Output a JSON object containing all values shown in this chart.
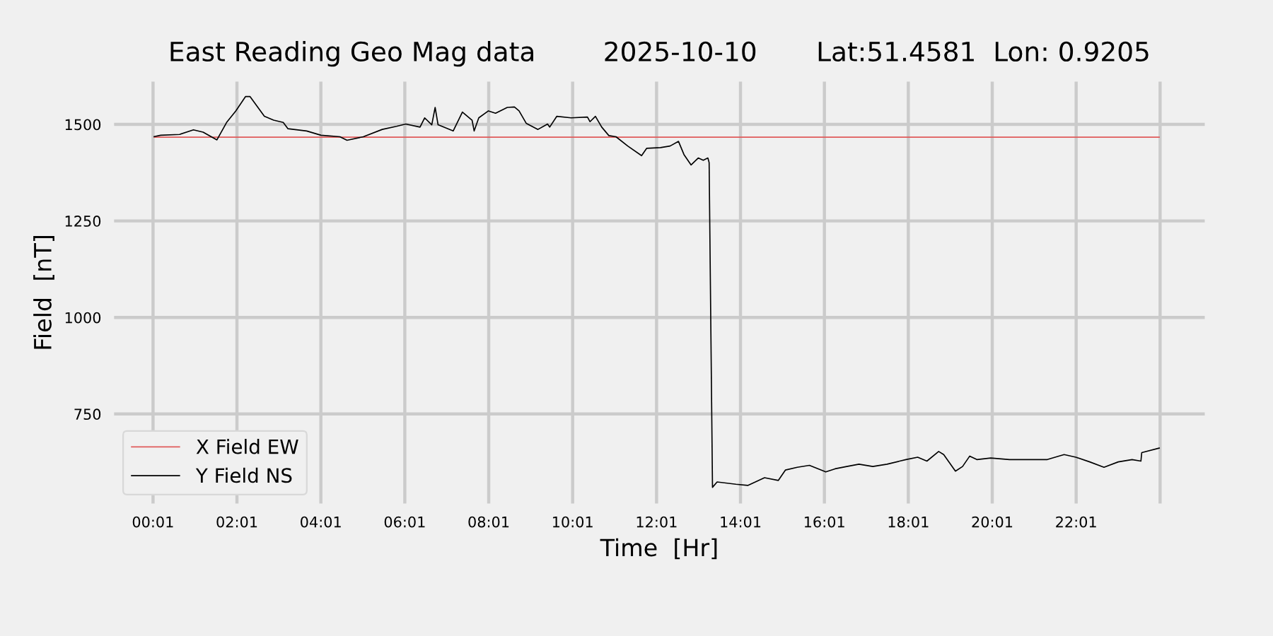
{
  "chart_data": {
    "type": "line",
    "title": "East Reading Geo Mag data        2025-10-10       Lat:51.4581  Lon: 0.9205",
    "xlabel": "Time  [Hr]",
    "ylabel": "Field  [nT]",
    "xlim": [
      -0.93,
      25.1
    ],
    "ylim": [
      516,
      1613
    ],
    "xticks": [
      {
        "value": 0.017,
        "label": "00:01"
      },
      {
        "value": 2.017,
        "label": "02:01"
      },
      {
        "value": 4.017,
        "label": "04:01"
      },
      {
        "value": 6.017,
        "label": "06:01"
      },
      {
        "value": 8.017,
        "label": "08:01"
      },
      {
        "value": 10.017,
        "label": "10:01"
      },
      {
        "value": 12.017,
        "label": "12:01"
      },
      {
        "value": 14.017,
        "label": "14:01"
      },
      {
        "value": 16.017,
        "label": "16:01"
      },
      {
        "value": 18.017,
        "label": "18:01"
      },
      {
        "value": 20.017,
        "label": "20:01"
      },
      {
        "value": 22.017,
        "label": "22:01"
      },
      {
        "value": 24.017,
        "label": null
      }
    ],
    "yticks": [
      750,
      1000,
      1250,
      1500
    ],
    "grid": true,
    "legend": "lower left",
    "series": [
      {
        "name": "X Field EW",
        "color": "#e05a5a",
        "x": [
          0.03,
          24.01
        ],
        "values": [
          1467,
          1467
        ]
      },
      {
        "name": "Y Field NS",
        "color": "#000000",
        "x": [
          0.03,
          0.2,
          0.65,
          0.98,
          1.21,
          1.54,
          1.77,
          1.99,
          2.22,
          2.33,
          2.67,
          2.89,
          3.12,
          3.23,
          3.68,
          4.02,
          4.47,
          4.64,
          5.03,
          5.48,
          5.82,
          6.04,
          6.38,
          6.49,
          6.66,
          6.74,
          6.81,
          7.17,
          7.39,
          7.62,
          7.67,
          7.78,
          8.01,
          8.18,
          8.46,
          8.63,
          8.74,
          8.91,
          9.19,
          9.42,
          9.47,
          9.64,
          9.98,
          10.37,
          10.43,
          10.56,
          10.71,
          10.88,
          11.05,
          11.33,
          11.66,
          11.78,
          12.11,
          12.34,
          12.54,
          12.67,
          12.84,
          13.01,
          13.13,
          13.24,
          13.27,
          13.35,
          13.46,
          13.91,
          14.19,
          14.59,
          14.92,
          15.09,
          15.37,
          15.66,
          16.05,
          16.27,
          16.55,
          16.84,
          17.17,
          17.51,
          17.96,
          18.24,
          18.46,
          18.74,
          18.86,
          19.14,
          19.31,
          19.48,
          19.65,
          19.98,
          20.43,
          20.88,
          21.33,
          21.73,
          22.01,
          22.34,
          22.68,
          23.02,
          23.35,
          23.56,
          23.58,
          24.01
        ],
        "values": [
          1468,
          1472,
          1474,
          1486,
          1480,
          1460,
          1505,
          1535,
          1572,
          1572,
          1521,
          1511,
          1505,
          1489,
          1483,
          1472,
          1468,
          1459,
          1468,
          1487,
          1495,
          1501,
          1493,
          1517,
          1499,
          1544,
          1499,
          1483,
          1532,
          1511,
          1483,
          1517,
          1535,
          1529,
          1544,
          1545,
          1535,
          1503,
          1487,
          1501,
          1493,
          1521,
          1517,
          1519,
          1507,
          1521,
          1493,
          1471,
          1468,
          1444,
          1419,
          1438,
          1440,
          1444,
          1456,
          1422,
          1395,
          1413,
          1407,
          1413,
          1401,
          560,
          574,
          568,
          565,
          585,
          578,
          605,
          612,
          617,
          600,
          608,
          614,
          620,
          614,
          620,
          632,
          638,
          628,
          653,
          645,
          602,
          614,
          641,
          632,
          636,
          632,
          632,
          632,
          645,
          638,
          626,
          612,
          626,
          632,
          628,
          650,
          662
        ]
      }
    ]
  }
}
